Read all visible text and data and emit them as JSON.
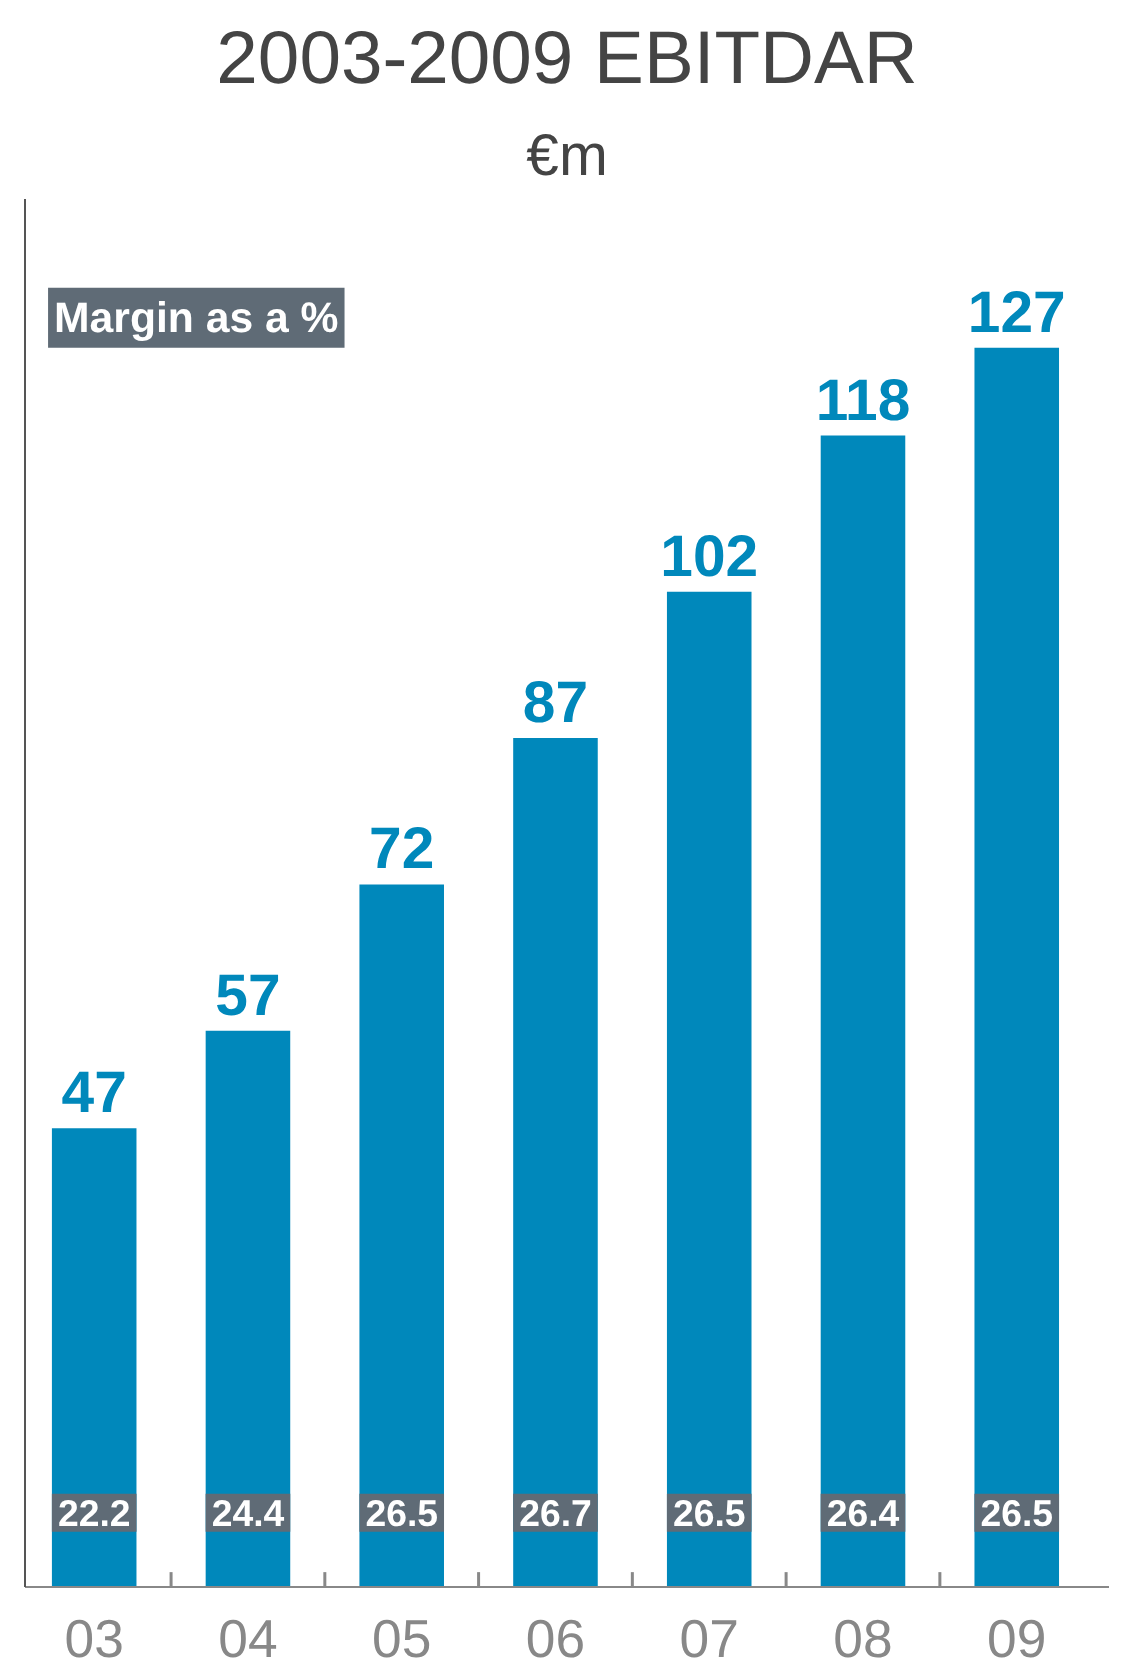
{
  "chart_data": {
    "type": "bar",
    "title": "2003-2009 EBITDAR",
    "subtitle": "€m",
    "categories": [
      "03",
      "04",
      "05",
      "06",
      "07",
      "08",
      "09"
    ],
    "values": [
      47,
      57,
      72,
      87,
      102,
      118,
      127
    ],
    "color": "#0088bb",
    "data_labels": true,
    "tick_labels": "x",
    "grid": false,
    "annotations": [
      "Margin as a %",
      {
        "text": "22.2",
        "x": "03"
      },
      {
        "text": "24.4",
        "x": "04"
      },
      {
        "text": "26.5",
        "x": "05"
      },
      {
        "text": "26.7",
        "x": "06"
      },
      {
        "text": "26.5",
        "x": "07"
      },
      {
        "text": "26.4",
        "x": "08"
      },
      {
        "text": "26.5",
        "x": "09"
      }
    ]
  }
}
